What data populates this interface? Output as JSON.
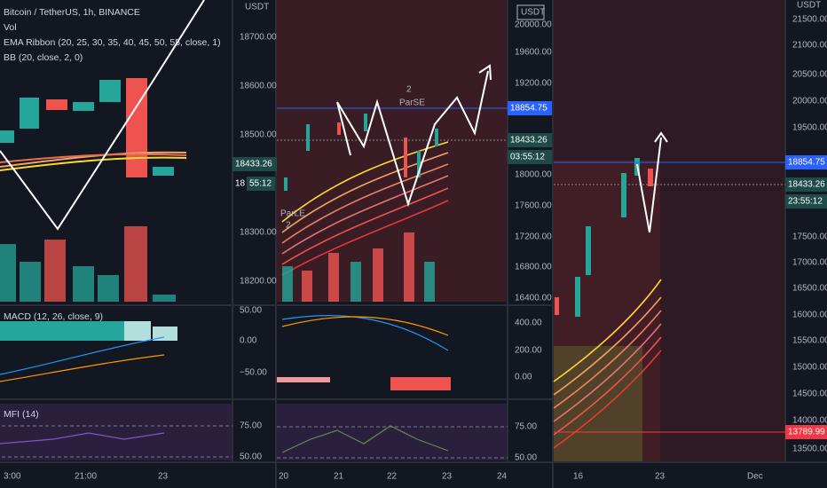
{
  "panels": [
    {
      "legend": [
        "Bitcoin / TetherUS, 1h, BINANCE",
        "Vol",
        "EMA Ribbon (20, 25, 30, 35, 40, 45, 50, 55, close, 1)",
        "BB (20, close, 2, 0)"
      ],
      "price_unit": "USDT",
      "price_labels": [
        "18700.00",
        "18600.00",
        "18500.00",
        "18300.00",
        "18200.00"
      ],
      "price_tags": [
        "18433.26",
        "18",
        "55:12"
      ],
      "macd_label": "MACD (12, 26, close, 9)",
      "macd_labels": [
        "50.00",
        "0.00",
        "−50.00"
      ],
      "mfi_label": "MFI (14)",
      "mfi_labels": [
        "75.00",
        "50.00"
      ],
      "time_labels": [
        "3:00",
        "21:00",
        "23"
      ]
    },
    {
      "price_unit": "USDT",
      "price_labels": [
        "20000.00",
        "19600.00",
        "19200.00",
        "18000.00",
        "17600.00",
        "17200.00",
        "16800.00",
        "16400.00"
      ],
      "price_tags": [
        "18854.75",
        "18433.26",
        "03:55:12"
      ],
      "macd_labels": [
        "400.00",
        "200.00",
        "0.00"
      ],
      "mfi_labels": [
        "75.00",
        "50.00"
      ],
      "annotations": [
        "2",
        "ParSE",
        "ParLE",
        "2"
      ],
      "time_labels": [
        "20",
        "21",
        "22",
        "23",
        "24"
      ]
    },
    {
      "price_unit": "USDT",
      "price_labels": [
        "21500.00",
        "21000.00",
        "20500.00",
        "20000.00",
        "19500.00",
        "17500.00",
        "17000.00",
        "16500.00",
        "16000.00",
        "15500.00",
        "15000.00",
        "14500.00",
        "14000.00",
        "13500.00"
      ],
      "price_tags": [
        "18854.75",
        "18433.26",
        "23:55:12",
        "13789.99"
      ],
      "time_labels": [
        "16",
        "23",
        "Dec"
      ]
    }
  ]
}
